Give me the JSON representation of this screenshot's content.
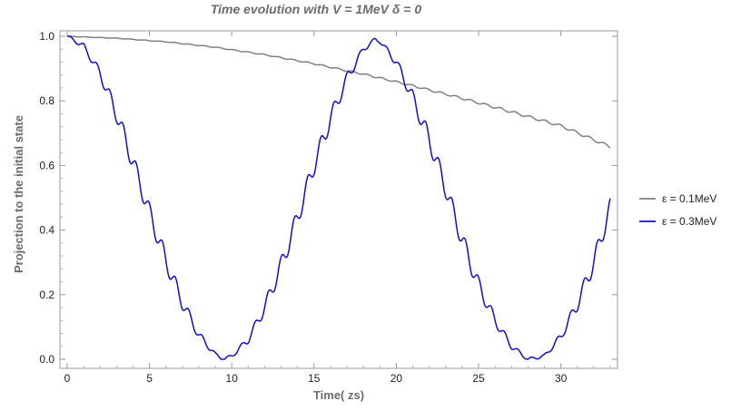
{
  "chart_data": {
    "type": "line",
    "title": "Time evolution with V  =  1MeV  δ = 0",
    "xlabel": "Time( zs)",
    "ylabel": "Projection to the initial state",
    "xlim": [
      0,
      33
    ],
    "ylim": [
      0,
      1.0
    ],
    "x_ticks": [
      0,
      5,
      10,
      15,
      20,
      25,
      30
    ],
    "y_ticks": [
      0.0,
      0.2,
      0.4,
      0.6,
      0.8,
      1.0
    ],
    "x_tick_labels": [
      "0",
      "5",
      "10",
      "15",
      "20",
      "25",
      "30"
    ],
    "y_tick_labels": [
      "0.0",
      "0.2",
      "0.4",
      "0.6",
      "0.8",
      "1.0"
    ],
    "grid": false,
    "legend_position": "right",
    "series": [
      {
        "name": "ε  =  0.1MeV",
        "color": "#808080",
        "x": [
          0,
          3,
          6,
          9,
          12,
          15,
          18,
          21,
          24,
          27,
          30,
          33
        ],
        "y": [
          1.0,
          0.994,
          0.983,
          0.966,
          0.943,
          0.915,
          0.883,
          0.847,
          0.808,
          0.766,
          0.723,
          0.658
        ]
      },
      {
        "name": "ε  =  0.3MeV",
        "color": "#1010c8",
        "x": [
          0,
          1,
          2,
          3,
          4,
          5,
          6,
          7,
          8,
          9,
          9.5,
          10,
          11,
          12,
          13,
          14,
          15,
          16,
          17,
          18,
          18.7,
          19,
          20,
          21,
          22,
          23,
          24,
          25,
          26,
          27,
          28,
          29,
          30,
          31,
          32,
          33
        ],
        "y": [
          1.0,
          0.97,
          0.885,
          0.76,
          0.61,
          0.455,
          0.305,
          0.175,
          0.075,
          0.015,
          0.0,
          0.01,
          0.06,
          0.16,
          0.29,
          0.44,
          0.6,
          0.745,
          0.87,
          0.96,
          0.99,
          0.985,
          0.92,
          0.81,
          0.68,
          0.53,
          0.37,
          0.23,
          0.12,
          0.04,
          0.0,
          0.01,
          0.07,
          0.17,
          0.3,
          0.47
        ]
      }
    ]
  }
}
